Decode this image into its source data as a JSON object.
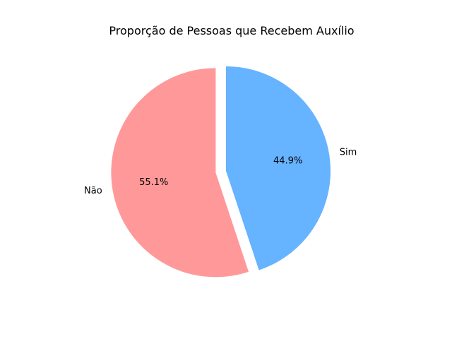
{
  "chart_data": {
    "type": "pie",
    "title": "Proporção de Pessoas que Recebem Auxílio",
    "slices": [
      {
        "label": "Não",
        "value": 55.1,
        "pct_label": "55.1%",
        "color": "#ff9999",
        "explode": 0.1
      },
      {
        "label": "Sim",
        "value": 44.9,
        "pct_label": "44.9%",
        "color": "#66b3ff",
        "explode": 0
      }
    ],
    "start_angle_deg": 90,
    "direction": "counterclockwise"
  }
}
